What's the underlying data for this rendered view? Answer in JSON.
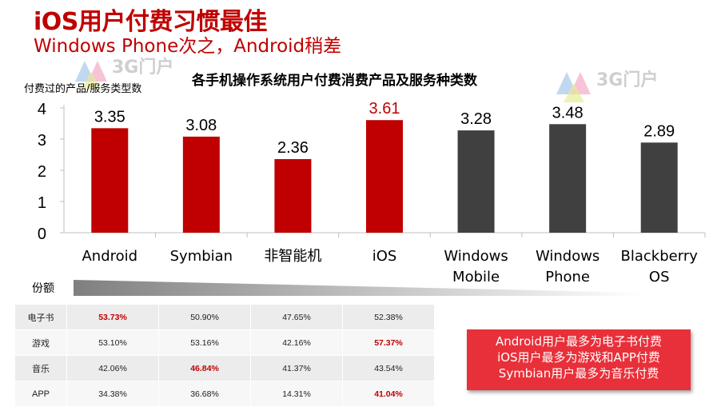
{
  "header": {
    "title": "iOS用户付费习惯最佳",
    "subtitle": "Windows Phone次之，Android稍差"
  },
  "watermark": "3G门户",
  "chart_data": {
    "type": "bar",
    "title": "各手机操作系统用户付费消费产品及服务种类数",
    "ylabel": "付费过的产品/服务类型数",
    "xlabel": "",
    "ylim": [
      0,
      4
    ],
    "yticks": [
      "0",
      "1",
      "2",
      "3",
      "4"
    ],
    "categories": [
      "Android",
      "Symbian",
      "非智能机",
      "iOS",
      "Windows Mobile",
      "Windows Phone",
      "Blackberry OS"
    ],
    "category_lines": [
      [
        "Android"
      ],
      [
        "Symbian"
      ],
      [
        "非智能机"
      ],
      [
        "iOS"
      ],
      [
        "Windows",
        "Mobile"
      ],
      [
        "Windows",
        "Phone"
      ],
      [
        "Blackberry",
        "OS"
      ]
    ],
    "values": [
      3.35,
      3.08,
      2.36,
      3.61,
      3.28,
      3.48,
      2.89
    ],
    "value_labels": [
      "3.35",
      "3.08",
      "2.36",
      "3.61",
      "3.28",
      "3.48",
      "2.89"
    ],
    "bar_colors": [
      "#c00000",
      "#c00000",
      "#c00000",
      "#c00000",
      "#404040",
      "#404040",
      "#404040"
    ],
    "label_colors": [
      "#000000",
      "#000000",
      "#000000",
      "#c00000",
      "#000000",
      "#000000",
      "#000000"
    ],
    "grid": false,
    "legend": "none"
  },
  "share": {
    "label": "份额",
    "table": {
      "rows": [
        {
          "name": "电子书",
          "values": [
            "53.73%",
            "50.90%",
            "47.65%",
            "52.38%"
          ],
          "highlight": [
            true,
            false,
            false,
            false
          ]
        },
        {
          "name": "游戏",
          "values": [
            "53.10%",
            "53.16%",
            "42.16%",
            "57.37%"
          ],
          "highlight": [
            false,
            false,
            false,
            true
          ]
        },
        {
          "name": "音乐",
          "values": [
            "42.06%",
            "46.84%",
            "41.37%",
            "43.54%"
          ],
          "highlight": [
            false,
            true,
            false,
            false
          ]
        },
        {
          "name": "APP",
          "values": [
            "34.38%",
            "36.68%",
            "14.31%",
            "41.04%"
          ],
          "highlight": [
            false,
            false,
            false,
            true
          ]
        }
      ]
    }
  },
  "callout": {
    "lines": [
      "Android用户最多为电子书付费",
      "iOS用户最多为游戏和APP付费",
      "Symbian用户最多为音乐付费"
    ]
  }
}
